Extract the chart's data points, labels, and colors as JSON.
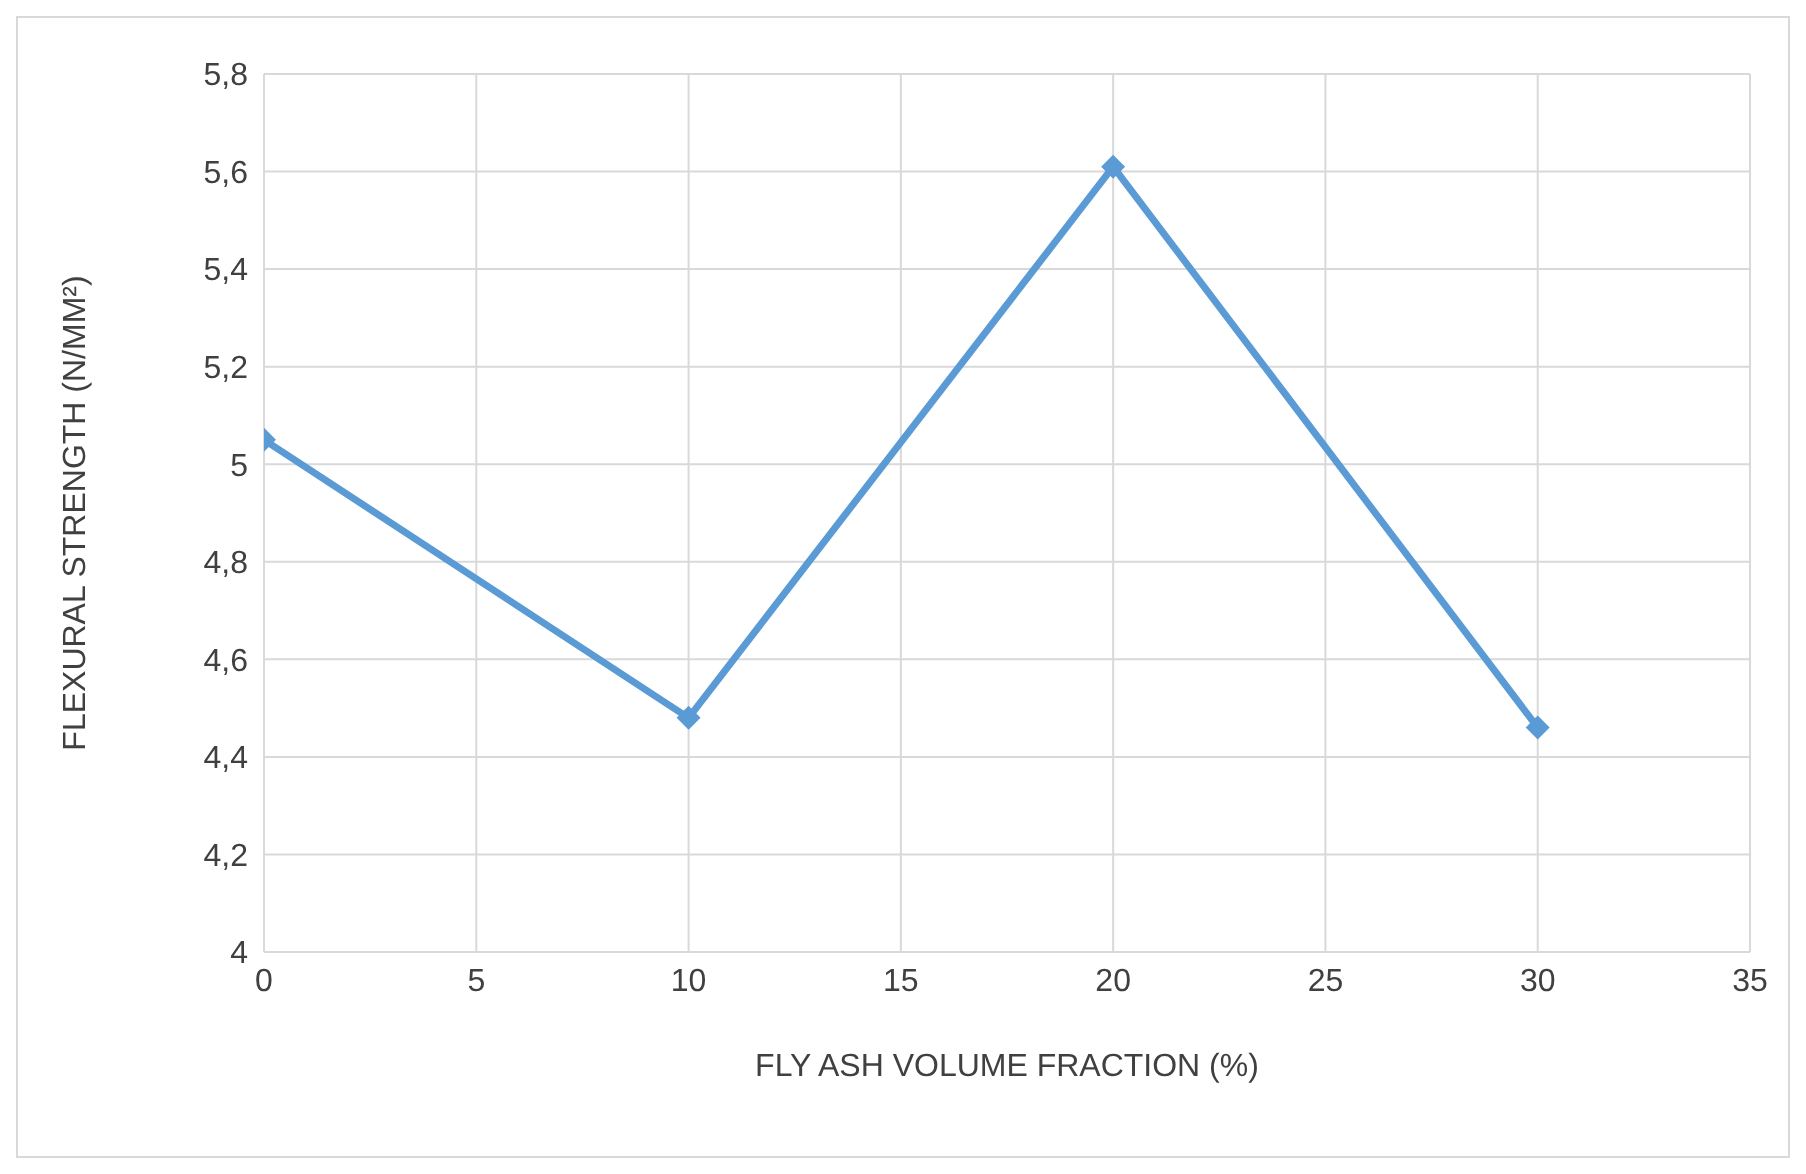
{
  "chart_data": {
    "type": "line",
    "xlabel": "FLY ASH VOLUME FRACTION (%)",
    "ylabel": "FLEXURAL STRENGTH (N/MM²)",
    "x": [
      0,
      10,
      20,
      30
    ],
    "series": [
      {
        "color": "#5b9bd5",
        "values": [
          5.05,
          4.48,
          5.61,
          4.46
        ]
      }
    ],
    "xlim": [
      0,
      35
    ],
    "xticks": [
      0,
      5,
      10,
      15,
      20,
      25,
      30,
      35
    ],
    "ylim": [
      4,
      5.8
    ],
    "yticks": [
      4,
      {
        "value": 4.2,
        "label": "4,2"
      },
      {
        "value": 4.4,
        "label": "4,4"
      },
      {
        "value": 4.6,
        "label": "4,6"
      },
      {
        "value": 4.8,
        "label": "4,8"
      },
      5,
      {
        "value": 5.2,
        "label": "5,2"
      },
      {
        "value": 5.4,
        "label": "5,4"
      },
      {
        "value": 5.6,
        "label": "5,6"
      },
      {
        "value": 5.8,
        "label": "5,8"
      }
    ],
    "grid": true,
    "marker": "diamond",
    "line_style": "solid"
  }
}
